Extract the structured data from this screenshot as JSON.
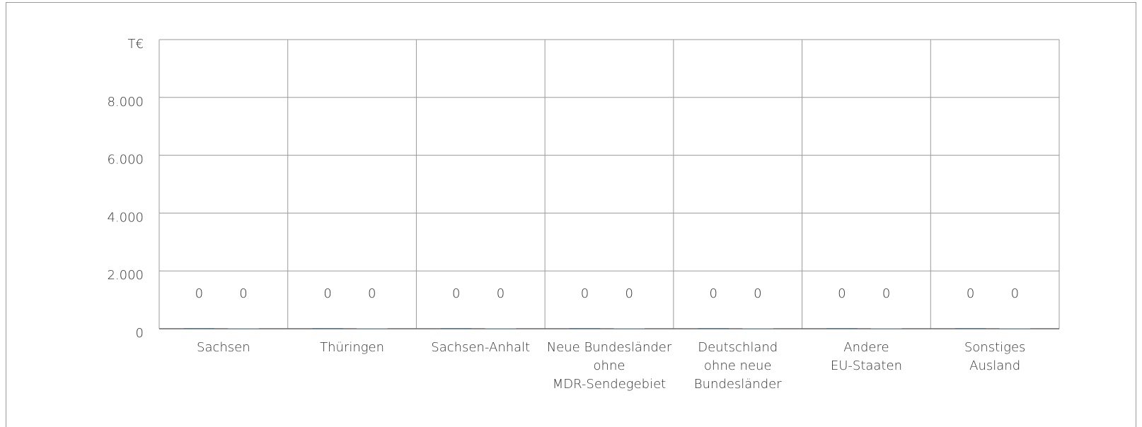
{
  "chart_data": {
    "type": "bar",
    "y_label": "T€",
    "categories": [
      [
        "Sachsen"
      ],
      [
        "Thüringen"
      ],
      [
        "Sachsen-Anhalt"
      ],
      [
        "Neue Bundesländer",
        "ohne",
        "MDR-Sendegebiet"
      ],
      [
        "Deutschland",
        "ohne neue",
        "Bundesländer"
      ],
      [
        "Andere",
        "EU-Staaten"
      ],
      [
        "Sonstiges",
        "Ausland"
      ]
    ],
    "series": [
      {
        "color": "#4f7f96",
        "values": [
          0,
          0,
          0,
          0,
          0,
          0,
          0
        ]
      },
      {
        "color": "#9fb9c6",
        "values": [
          0,
          0,
          0,
          0,
          0,
          0,
          0
        ]
      }
    ],
    "ylim": [
      0,
      10000
    ],
    "yticks": [
      0,
      {
        "value": 2000,
        "label": "2.000"
      },
      {
        "value": 4000,
        "label": "4.000"
      },
      {
        "value": 6000,
        "label": "6.000"
      },
      {
        "value": 8000,
        "label": "8.000"
      }
    ],
    "grid": true
  }
}
